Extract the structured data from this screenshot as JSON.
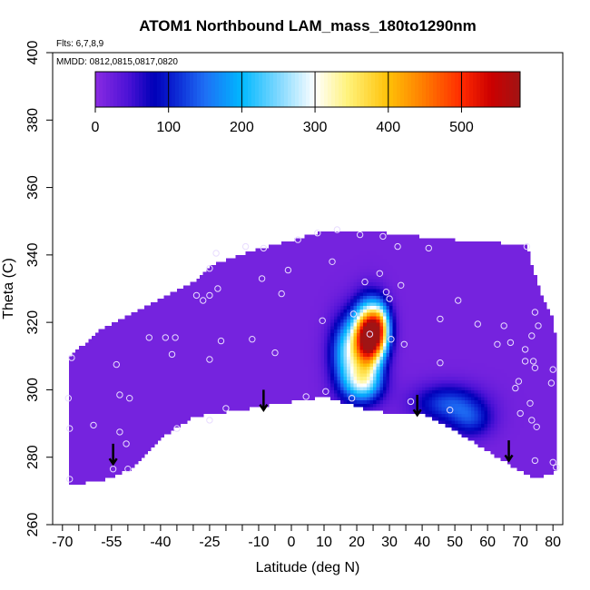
{
  "chart_data": {
    "type": "heatmap",
    "title": "ATOM1 Northbound LAM_mass_180to1290nm",
    "flights_note": "Flts: 6,7,8,9",
    "dates_note": "MMDD: 0812,0815,0817,0820",
    "xlabel": "Latitude (deg N)",
    "ylabel": "Theta (C)",
    "xlim": [
      -70,
      80
    ],
    "ylim": [
      260,
      400
    ],
    "x_ticks_labeled": [
      -70,
      -55,
      -40,
      -25,
      -10,
      0,
      10,
      20,
      30,
      40,
      50,
      60,
      70,
      80
    ],
    "x_tick_labels": [
      "-70",
      "-55",
      "-40",
      "-25",
      "-10",
      "0",
      "10",
      "20",
      "30",
      "40",
      "50",
      "60",
      "70",
      "80"
    ],
    "x_ticks_minor": [
      -65,
      -60,
      -50,
      -45,
      -35,
      -30,
      -20,
      -15,
      -5,
      5,
      15,
      25,
      35,
      45,
      55,
      65,
      75
    ],
    "y_ticks": [
      260,
      280,
      300,
      320,
      340,
      360,
      380,
      400
    ],
    "y_tick_labels": [
      "260",
      "280",
      "300",
      "320",
      "340",
      "360",
      "380",
      "400"
    ],
    "colorbar": {
      "range": [
        0,
        580
      ],
      "ticks": [
        0,
        100,
        200,
        300,
        400,
        500
      ],
      "tick_labels": [
        "0",
        "100",
        "200",
        "300",
        "400",
        "500"
      ],
      "stops": [
        {
          "v": 0,
          "c": "#8a2be2"
        },
        {
          "v": 45,
          "c": "#4b12d6"
        },
        {
          "v": 80,
          "c": "#0000b8"
        },
        {
          "v": 105,
          "c": "#0a1fd0"
        },
        {
          "v": 150,
          "c": "#1e6ff5"
        },
        {
          "v": 200,
          "c": "#00b8ff"
        },
        {
          "v": 250,
          "c": "#7fd8ff"
        },
        {
          "v": 300,
          "c": "#ffffff"
        },
        {
          "v": 345,
          "c": "#fff27a"
        },
        {
          "v": 400,
          "c": "#ffc107"
        },
        {
          "v": 450,
          "c": "#ff7a00"
        },
        {
          "v": 500,
          "c": "#ff2a00"
        },
        {
          "v": 540,
          "c": "#cc0000"
        },
        {
          "v": 580,
          "c": "#a01414"
        }
      ]
    },
    "background_value": 15,
    "envelope": {
      "top": [
        [
          -68,
          310
        ],
        [
          -64,
          313
        ],
        [
          -58,
          318
        ],
        [
          -50,
          322
        ],
        [
          -44,
          325
        ],
        [
          -36,
          329
        ],
        [
          -30,
          332
        ],
        [
          -24,
          337
        ],
        [
          -16,
          340
        ],
        [
          -5,
          343
        ],
        [
          10,
          347
        ],
        [
          24,
          347
        ],
        [
          34,
          346
        ],
        [
          55,
          344
        ],
        [
          72,
          343
        ],
        [
          74,
          335
        ],
        [
          77,
          327
        ],
        [
          80,
          321
        ],
        [
          81,
          312
        ],
        [
          81,
          305
        ]
      ],
      "bottom": [
        [
          -68,
          272
        ],
        [
          -58,
          273
        ],
        [
          -48,
          277
        ],
        [
          -40,
          286
        ],
        [
          -30,
          292
        ],
        [
          -10,
          295
        ],
        [
          10,
          298
        ],
        [
          24,
          294
        ],
        [
          32,
          293
        ],
        [
          40,
          293
        ],
        [
          50,
          288
        ],
        [
          60,
          282
        ],
        [
          70,
          276
        ],
        [
          74,
          274
        ],
        [
          79,
          275
        ],
        [
          81,
          276
        ]
      ]
    },
    "features": [
      {
        "name": "core",
        "x": 23.5,
        "y": 315.5,
        "peak": 575,
        "sx": 3.2,
        "sy": 6.5
      },
      {
        "name": "shoulder-north",
        "x": 27,
        "y": 318.5,
        "peak": 250,
        "sx": 2.4,
        "sy": 5
      },
      {
        "name": "shoulder-south",
        "x": 17,
        "y": 311,
        "peak": 200,
        "sx": 3.5,
        "sy": 7
      },
      {
        "name": "tail-low",
        "x": 22,
        "y": 302,
        "peak": 210,
        "sx": 4,
        "sy": 4
      },
      {
        "name": "low-strip",
        "x": 48,
        "y": 296,
        "peak": 115,
        "sx": 7,
        "sy": 3.8
      },
      {
        "name": "low-strip-east",
        "x": 55,
        "y": 291,
        "peak": 85,
        "sx": 4.5,
        "sy": 3.5
      }
    ],
    "samples": [
      [
        -67.2,
        309.5
      ],
      [
        -68.2,
        297.5
      ],
      [
        -67.8,
        288.5
      ],
      [
        -67.8,
        273.5
      ],
      [
        -60.5,
        289.5
      ],
      [
        -53.5,
        307.5
      ],
      [
        -52.5,
        298.5
      ],
      [
        -49.5,
        297.5
      ],
      [
        -52.5,
        287.5
      ],
      [
        -54.5,
        276.5
      ],
      [
        -50,
        276.5
      ],
      [
        -50.5,
        284
      ],
      [
        -43.5,
        315.5
      ],
      [
        -38.5,
        315.5
      ],
      [
        -36.5,
        310.5
      ],
      [
        -35.5,
        315.5
      ],
      [
        -35,
        288.5
      ],
      [
        -29,
        328
      ],
      [
        -27,
        326.5
      ],
      [
        -25,
        328
      ],
      [
        -25,
        336
      ],
      [
        -25,
        309
      ],
      [
        -25,
        291
      ],
      [
        -23,
        340.5
      ],
      [
        -22.5,
        330
      ],
      [
        -21.5,
        314.5
      ],
      [
        -20,
        294.5
      ],
      [
        -14,
        342.5
      ],
      [
        -12,
        315
      ],
      [
        -9,
        333
      ],
      [
        -8.5,
        342
      ],
      [
        -5,
        311
      ],
      [
        -3,
        328.5
      ],
      [
        -1,
        335.5
      ],
      [
        2,
        344.5
      ],
      [
        4.5,
        298
      ],
      [
        8,
        346.5
      ],
      [
        9.5,
        320.5
      ],
      [
        10.5,
        299.5
      ],
      [
        12.5,
        338
      ],
      [
        14,
        347.5
      ],
      [
        18.5,
        297.5
      ],
      [
        19,
        322.5
      ],
      [
        21,
        346
      ],
      [
        22.5,
        332
      ],
      [
        24,
        316.5
      ],
      [
        27,
        334.5
      ],
      [
        28,
        345.5
      ],
      [
        29,
        329
      ],
      [
        30,
        327
      ],
      [
        30.5,
        315
      ],
      [
        32.5,
        342.5
      ],
      [
        33.5,
        331
      ],
      [
        34.5,
        313.5
      ],
      [
        36.5,
        296.5
      ],
      [
        42,
        342
      ],
      [
        45.5,
        321
      ],
      [
        45.5,
        308
      ],
      [
        48.5,
        294
      ],
      [
        51,
        326.5
      ],
      [
        57,
        319.5
      ],
      [
        63,
        313.5
      ],
      [
        65,
        319
      ],
      [
        67,
        314
      ],
      [
        68.5,
        300.5
      ],
      [
        69.5,
        302.5
      ],
      [
        70,
        293
      ],
      [
        71.5,
        312
      ],
      [
        71.5,
        308.5
      ],
      [
        72,
        342.5
      ],
      [
        73,
        296
      ],
      [
        73.5,
        316
      ],
      [
        74,
        308.5
      ],
      [
        74.5,
        306.5
      ],
      [
        74.5,
        323
      ],
      [
        73.5,
        291
      ],
      [
        74.5,
        279
      ],
      [
        75.5,
        319
      ],
      [
        75,
        289
      ],
      [
        79.5,
        302
      ],
      [
        80,
        306
      ],
      [
        80,
        278.5
      ],
      [
        81,
        277
      ]
    ],
    "arrows": [
      [
        -54.5,
        284
      ],
      [
        -8.5,
        300
      ],
      [
        38.5,
        298.5
      ],
      [
        66.5,
        285
      ]
    ]
  }
}
